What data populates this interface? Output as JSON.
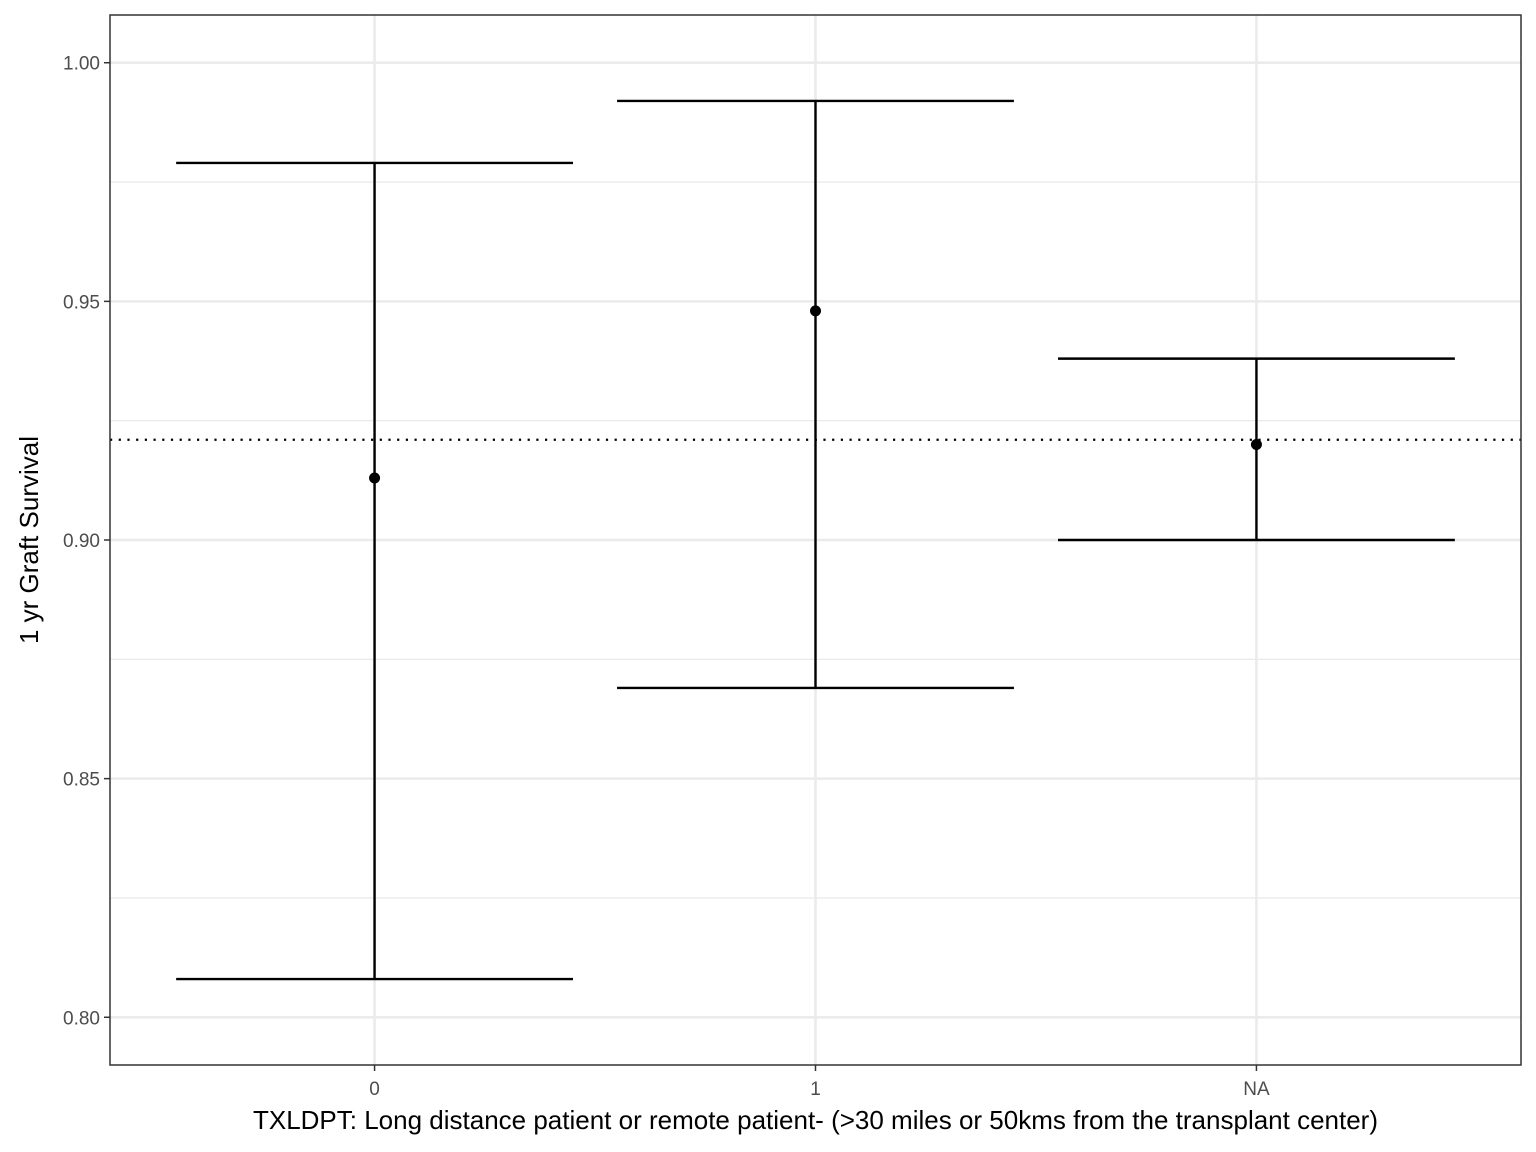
{
  "chart_data": {
    "type": "errorbar",
    "categories": [
      "0",
      "1",
      "NA"
    ],
    "series": [
      {
        "points": [
          0.913,
          0.948,
          0.92
        ],
        "lower": [
          0.808,
          0.869,
          0.9
        ],
        "upper": [
          0.979,
          0.992,
          0.938
        ]
      }
    ],
    "reference_line": 0.921,
    "ylim": [
      0.79,
      1.01
    ],
    "yticks": [
      0.8,
      0.85,
      0.9,
      0.95,
      1.0
    ],
    "ytick_labels": [
      "0.80",
      "0.85",
      "0.90",
      "0.95",
      "1.00"
    ],
    "xlabel": "TXLDPT: Long distance patient or remote patient- (>30 miles or 50kms from the transplant center)",
    "ylabel": "1 yr Graft Survival",
    "grid": true,
    "colors": {
      "marks": "#000000",
      "grid": "#ebebeb",
      "panel_border": "#333333"
    }
  }
}
